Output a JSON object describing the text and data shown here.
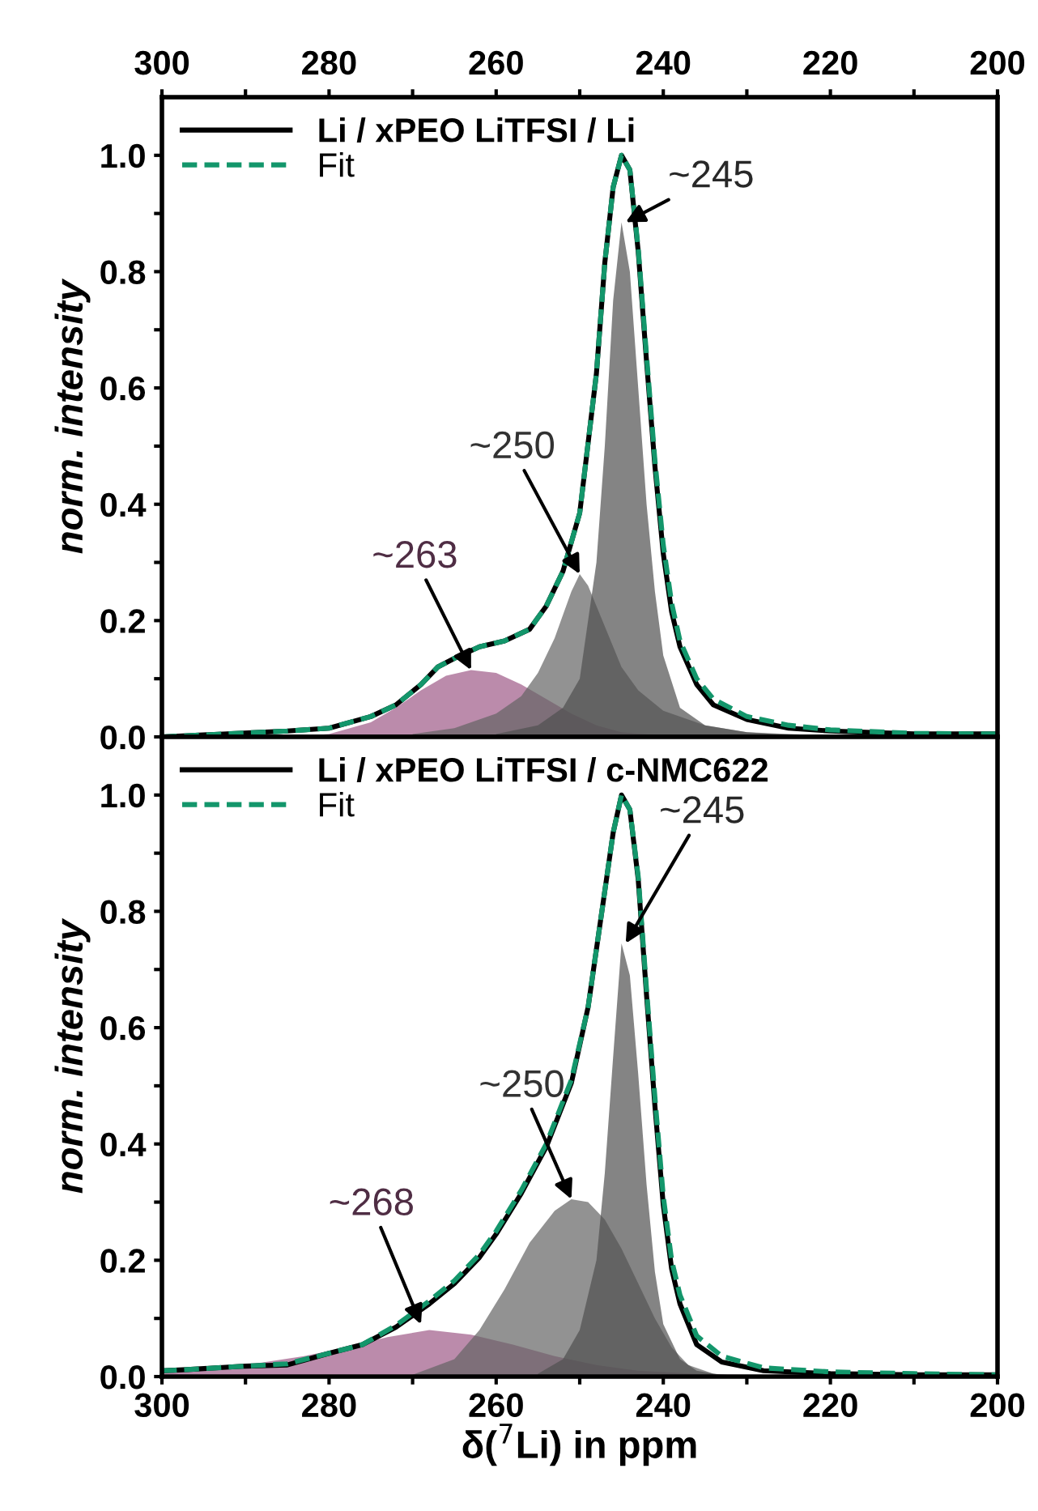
{
  "chart_data": [
    {
      "type": "line",
      "xlim": [
        300,
        200
      ],
      "xticks": [
        300,
        {
          "value": 290,
          "label": null
        },
        280,
        {
          "value": 270,
          "label": null
        },
        260,
        {
          "value": 250,
          "label": null
        },
        240,
        {
          "value": 230,
          "label": null
        },
        220,
        {
          "value": 210,
          "label": null
        },
        200
      ],
      "ylim": [
        0,
        1.1
      ],
      "yticks": [
        {
          "value": 0,
          "label": "0.0"
        },
        {
          "value": 0.1,
          "label": null
        },
        {
          "value": 0.2,
          "label": "0.2"
        },
        {
          "value": 0.3,
          "label": null
        },
        {
          "value": 0.4,
          "label": "0.4"
        },
        {
          "value": 0.5,
          "label": null
        },
        {
          "value": 0.6,
          "label": "0.6"
        },
        {
          "value": 0.7,
          "label": null
        },
        {
          "value": 0.8,
          "label": "0.8"
        },
        {
          "value": 0.9,
          "label": null
        },
        {
          "value": 1.0,
          "label": "1.0"
        }
      ],
      "ylabel": "norm. intensity",
      "legend": "top left",
      "grid": false,
      "series": [
        {
          "type": "area",
          "color": "#9e5a87",
          "x": [
            285,
            280,
            275,
            272,
            269,
            266,
            263,
            260,
            257,
            254,
            251,
            248,
            245,
            240,
            235
          ],
          "values": [
            0,
            0.005,
            0.025,
            0.05,
            0.08,
            0.105,
            0.115,
            0.11,
            0.09,
            0.065,
            0.04,
            0.02,
            0.008,
            0.002,
            0
          ]
        },
        {
          "type": "area",
          "color": "#646464",
          "x": [
            270,
            265,
            260,
            257,
            255,
            253,
            251,
            250,
            249,
            247,
            245,
            243,
            240,
            235,
            230,
            220
          ],
          "values": [
            0.005,
            0.015,
            0.04,
            0.07,
            0.11,
            0.17,
            0.25,
            0.28,
            0.26,
            0.19,
            0.12,
            0.08,
            0.045,
            0.02,
            0.008,
            0.002
          ]
        },
        {
          "type": "area",
          "color": "#505050",
          "x": [
            260,
            255,
            252,
            250,
            248,
            247,
            246,
            245,
            244,
            243,
            242,
            241,
            240,
            238,
            235,
            230,
            225
          ],
          "values": [
            0.005,
            0.02,
            0.05,
            0.1,
            0.3,
            0.5,
            0.75,
            0.885,
            0.8,
            0.6,
            0.4,
            0.25,
            0.14,
            0.05,
            0.02,
            0.008,
            0.003
          ]
        },
        {
          "name": "Li / xPEO LiTFSI / Li",
          "color": "#000000",
          "line_style": "solid",
          "x": [
            300,
            285,
            280,
            275,
            272,
            269,
            267,
            265,
            262,
            259,
            256,
            254,
            252,
            250,
            248,
            247,
            246,
            245,
            244,
            243,
            242,
            241,
            240,
            239,
            238,
            236,
            234,
            230,
            225,
            220,
            210,
            200
          ],
          "values": [
            0,
            0.01,
            0.015,
            0.035,
            0.055,
            0.09,
            0.12,
            0.135,
            0.155,
            0.165,
            0.185,
            0.225,
            0.285,
            0.385,
            0.625,
            0.815,
            0.945,
            1.0,
            0.975,
            0.835,
            0.645,
            0.465,
            0.315,
            0.215,
            0.155,
            0.09,
            0.055,
            0.03,
            0.015,
            0.01,
            0.005,
            0.005
          ]
        },
        {
          "name": "Fit",
          "color": "#13966b",
          "line_style": "dashed",
          "x": [
            300,
            285,
            280,
            275,
            272,
            269,
            267,
            265,
            262,
            259,
            256,
            254,
            252,
            250,
            248,
            247,
            246,
            245,
            244,
            243,
            242,
            241,
            240,
            239,
            238,
            236,
            234,
            230,
            225,
            220,
            210,
            200
          ],
          "values": [
            0,
            0.01,
            0.015,
            0.035,
            0.055,
            0.09,
            0.12,
            0.135,
            0.155,
            0.165,
            0.185,
            0.225,
            0.285,
            0.385,
            0.625,
            0.815,
            0.945,
            1.0,
            0.975,
            0.84,
            0.655,
            0.475,
            0.33,
            0.23,
            0.165,
            0.1,
            0.065,
            0.035,
            0.02,
            0.012,
            0.006,
            0.005
          ]
        }
      ],
      "annotations": [
        {
          "text": "~245",
          "x": 244.5,
          "y": 0.885
        },
        {
          "text": "~250",
          "x": 250,
          "y": 0.28
        },
        {
          "text": "~263",
          "x": 263,
          "y": 0.115
        }
      ]
    },
    {
      "type": "line",
      "xlim": [
        300,
        200
      ],
      "xticks": [
        300,
        {
          "value": 290,
          "label": null
        },
        280,
        {
          "value": 270,
          "label": null
        },
        260,
        {
          "value": 250,
          "label": null
        },
        240,
        {
          "value": 230,
          "label": null
        },
        220,
        {
          "value": 210,
          "label": null
        },
        200
      ],
      "ylim": [
        0,
        1.1
      ],
      "yticks": [
        {
          "value": 0,
          "label": "0.0"
        },
        {
          "value": 0.1,
          "label": null
        },
        {
          "value": 0.2,
          "label": "0.2"
        },
        {
          "value": 0.3,
          "label": null
        },
        {
          "value": 0.4,
          "label": "0.4"
        },
        {
          "value": 0.5,
          "label": null
        },
        {
          "value": 0.6,
          "label": "0.6"
        },
        {
          "value": 0.7,
          "label": null
        },
        {
          "value": 0.8,
          "label": "0.8"
        },
        {
          "value": 0.9,
          "label": null
        },
        {
          "value": 1.0,
          "label": "1.0"
        }
      ],
      "xlabel": "δ($^{7}$Li) in ppm",
      "ylabel": "norm. intensity",
      "legend": "top left",
      "grid": false,
      "series": [
        {
          "type": "area",
          "color": "#9e5a87",
          "x": [
            300,
            290,
            283,
            278,
            273,
            268,
            263,
            258,
            253,
            248,
            243,
            235,
            220
          ],
          "values": [
            0.005,
            0.02,
            0.035,
            0.05,
            0.068,
            0.08,
            0.072,
            0.055,
            0.035,
            0.02,
            0.01,
            0.004,
            0.001
          ]
        },
        {
          "type": "area",
          "color": "#646464",
          "x": [
            270,
            265,
            262,
            259,
            256,
            253,
            251,
            249,
            247,
            245,
            243,
            241,
            239,
            237,
            234,
            230
          ],
          "values": [
            0.003,
            0.03,
            0.08,
            0.15,
            0.23,
            0.285,
            0.305,
            0.3,
            0.27,
            0.22,
            0.16,
            0.1,
            0.05,
            0.02,
            0.005,
            0
          ]
        },
        {
          "type": "area",
          "color": "#505050",
          "x": [
            255,
            252,
            250,
            248,
            247,
            246,
            245,
            244,
            243,
            242,
            241,
            240,
            238,
            236,
            232
          ],
          "values": [
            0.005,
            0.03,
            0.08,
            0.2,
            0.35,
            0.55,
            0.745,
            0.69,
            0.52,
            0.33,
            0.18,
            0.09,
            0.03,
            0.01,
            0
          ]
        },
        {
          "name": "Li / xPEO LiTFSI / c-NMC622",
          "color": "#000000",
          "line_style": "solid",
          "x": [
            300,
            297,
            290,
            285,
            280,
            276,
            272,
            268,
            265,
            262,
            260,
            257,
            254,
            251,
            249,
            247,
            246,
            245,
            244,
            243,
            242,
            241,
            240,
            239,
            238,
            236,
            233,
            228,
            220,
            210,
            200
          ],
          "values": [
            0.01,
            0.012,
            0.018,
            0.02,
            0.04,
            0.055,
            0.085,
            0.125,
            0.16,
            0.205,
            0.245,
            0.315,
            0.395,
            0.505,
            0.635,
            0.835,
            0.935,
            1.0,
            0.975,
            0.855,
            0.655,
            0.465,
            0.295,
            0.185,
            0.125,
            0.055,
            0.025,
            0.01,
            0.005,
            0.003,
            0.003
          ]
        },
        {
          "name": "Fit",
          "color": "#13966b",
          "line_style": "dashed",
          "x": [
            300,
            297,
            290,
            285,
            280,
            276,
            272,
            268,
            265,
            262,
            260,
            257,
            254,
            251,
            249,
            247,
            246,
            245,
            244,
            243,
            242,
            241,
            240,
            239,
            238,
            236,
            233,
            228,
            220,
            210,
            200
          ],
          "values": [
            0.01,
            0.012,
            0.018,
            0.022,
            0.04,
            0.055,
            0.088,
            0.13,
            0.165,
            0.21,
            0.25,
            0.32,
            0.4,
            0.51,
            0.635,
            0.835,
            0.935,
            1.0,
            0.975,
            0.86,
            0.665,
            0.48,
            0.31,
            0.2,
            0.14,
            0.07,
            0.035,
            0.015,
            0.008,
            0.005,
            0.003
          ]
        }
      ],
      "annotations": [
        {
          "text": "~245",
          "x": 244.5,
          "y": 0.745
        },
        {
          "text": "~250",
          "x": 251,
          "y": 0.305
        },
        {
          "text": "~268",
          "x": 269,
          "y": 0.09
        }
      ]
    }
  ]
}
